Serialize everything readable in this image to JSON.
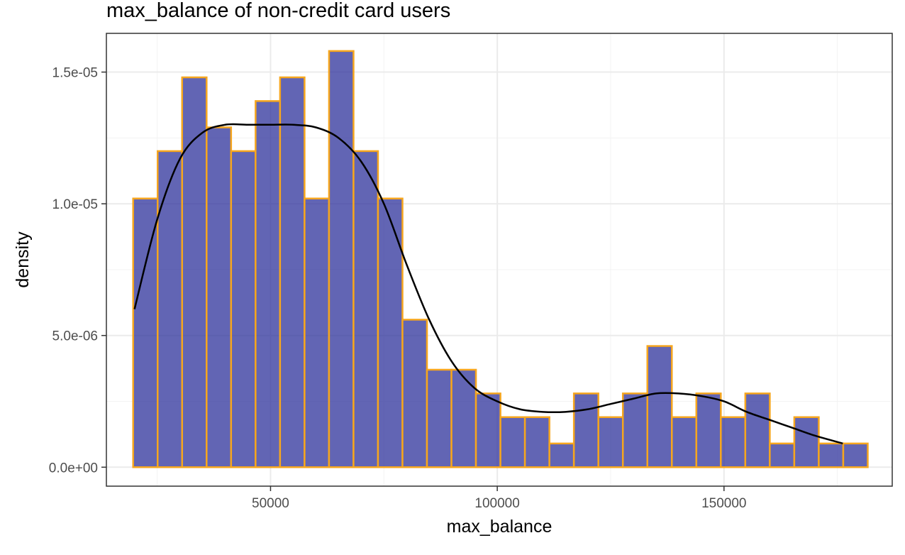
{
  "chart_data": {
    "type": "bar",
    "subtype": "histogram_with_density",
    "title": "max_balance of non-credit card users",
    "xlabel": "max_balance",
    "ylabel": "density",
    "xlim": [
      13800,
      187100
    ],
    "ylim": [
      -7.2e-07,
      1.647e-05
    ],
    "x_ticks": [
      50000,
      100000,
      150000
    ],
    "x_tick_labels": [
      "50000",
      "100000",
      "150000"
    ],
    "y_ticks": [
      0,
      5e-06,
      1e-05,
      1.5e-05
    ],
    "y_tick_labels": [
      "0.0e+00",
      "5.0e-06",
      "1.0e-05",
      "1.5e-05"
    ],
    "grid": true,
    "bin_width": 5400,
    "bins": [
      {
        "x0": 19700,
        "x1": 25100,
        "density": 1.02e-05
      },
      {
        "x0": 25100,
        "x1": 30500,
        "density": 1.2e-05
      },
      {
        "x0": 30500,
        "x1": 35900,
        "density": 1.48e-05
      },
      {
        "x0": 35900,
        "x1": 41300,
        "density": 1.29e-05
      },
      {
        "x0": 41300,
        "x1": 46700,
        "density": 1.2e-05
      },
      {
        "x0": 46700,
        "x1": 52100,
        "density": 1.39e-05
      },
      {
        "x0": 52100,
        "x1": 57500,
        "density": 1.48e-05
      },
      {
        "x0": 57500,
        "x1": 62900,
        "density": 1.02e-05
      },
      {
        "x0": 62900,
        "x1": 68300,
        "density": 1.58e-05
      },
      {
        "x0": 68300,
        "x1": 73700,
        "density": 1.2e-05
      },
      {
        "x0": 73700,
        "x1": 79100,
        "density": 1.02e-05
      },
      {
        "x0": 79100,
        "x1": 84500,
        "density": 5.6e-06
      },
      {
        "x0": 84500,
        "x1": 89900,
        "density": 3.7e-06
      },
      {
        "x0": 89900,
        "x1": 95300,
        "density": 3.7e-06
      },
      {
        "x0": 95300,
        "x1": 100700,
        "density": 2.8e-06
      },
      {
        "x0": 100700,
        "x1": 106100,
        "density": 1.9e-06
      },
      {
        "x0": 106100,
        "x1": 111500,
        "density": 1.9e-06
      },
      {
        "x0": 111500,
        "x1": 116900,
        "density": 9e-07
      },
      {
        "x0": 116900,
        "x1": 122300,
        "density": 2.8e-06
      },
      {
        "x0": 122300,
        "x1": 127700,
        "density": 1.9e-06
      },
      {
        "x0": 127700,
        "x1": 133100,
        "density": 2.8e-06
      },
      {
        "x0": 133100,
        "x1": 138500,
        "density": 4.6e-06
      },
      {
        "x0": 138500,
        "x1": 143900,
        "density": 1.9e-06
      },
      {
        "x0": 143900,
        "x1": 149300,
        "density": 2.8e-06
      },
      {
        "x0": 149300,
        "x1": 154700,
        "density": 1.9e-06
      },
      {
        "x0": 154700,
        "x1": 160100,
        "density": 2.8e-06
      },
      {
        "x0": 160100,
        "x1": 165500,
        "density": 9e-07
      },
      {
        "x0": 165500,
        "x1": 170900,
        "density": 1.9e-06
      },
      {
        "x0": 170900,
        "x1": 176300,
        "density": 9e-07
      },
      {
        "x0": 176300,
        "x1": 181700,
        "density": 9e-07
      }
    ],
    "density_curve": {
      "x": [
        20000,
        25000,
        30000,
        35000,
        40000,
        45000,
        50000,
        55000,
        60000,
        65000,
        70000,
        75000,
        80000,
        85000,
        90000,
        95000,
        100000,
        105000,
        110000,
        115000,
        120000,
        125000,
        130000,
        135000,
        140000,
        145000,
        150000,
        155000,
        160000,
        165000,
        170000,
        176200
      ],
      "y": [
        6e-06,
        9.4e-06,
        1.17e-05,
        1.27e-05,
        1.3e-05,
        1.3e-05,
        1.3e-05,
        1.3e-05,
        1.29e-05,
        1.25e-05,
        1.16e-05,
        1e-05,
        7.7e-06,
        5.6e-06,
        4e-06,
        3e-06,
        2.5e-06,
        2.2e-06,
        2.1e-06,
        2.1e-06,
        2.2e-06,
        2.4e-06,
        2.6e-06,
        2.8e-06,
        2.8e-06,
        2.7e-06,
        2.5e-06,
        2.1e-06,
        1.8e-06,
        1.5e-06,
        1.2e-06,
        9e-07
      ]
    },
    "colors": {
      "bar_fill": "#2d329b",
      "bar_fill_opacity": 0.75,
      "bar_outline": "#f6a61e",
      "density_line": "#000000"
    }
  }
}
